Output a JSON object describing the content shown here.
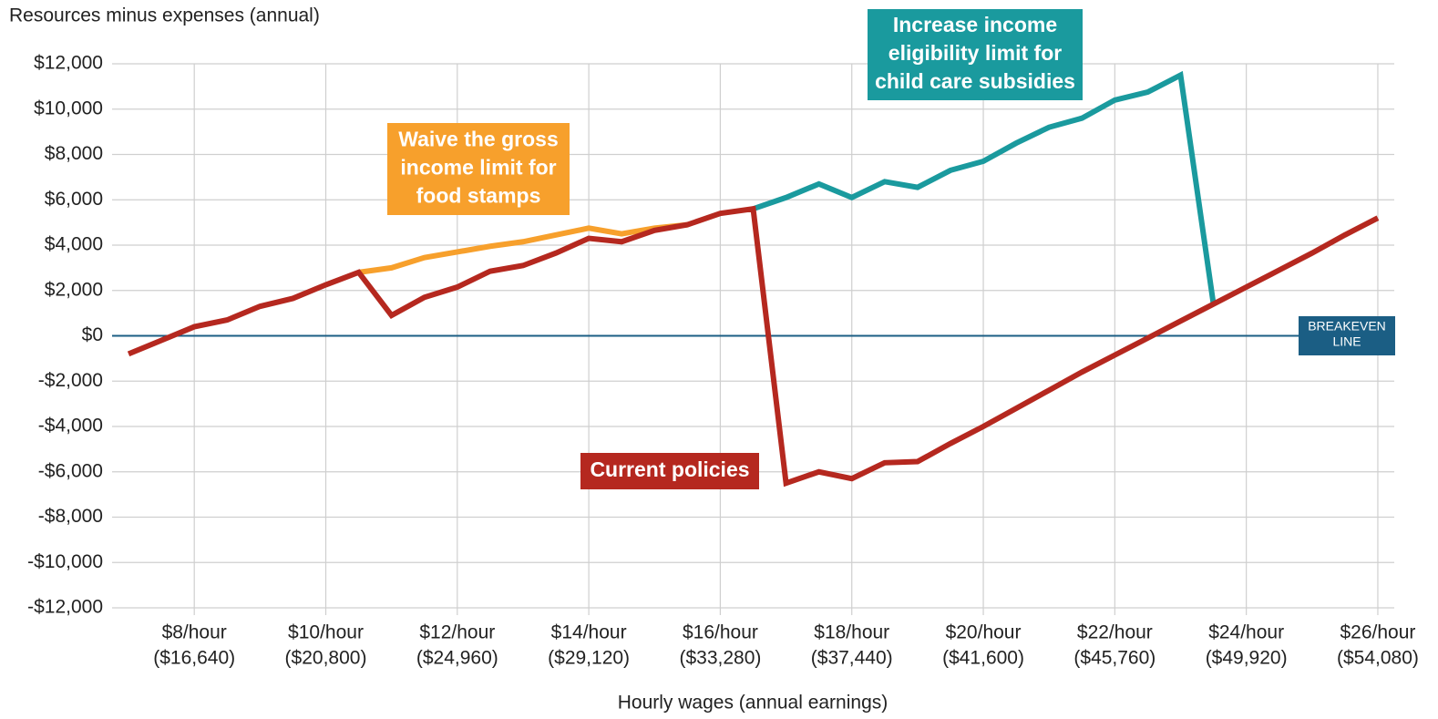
{
  "chart_data": {
    "type": "line",
    "ylabel": "Resources minus expenses (annual)",
    "xlabel": "Hourly wages (annual earnings)",
    "x": [
      7,
      7.5,
      8,
      8.5,
      9,
      9.5,
      10,
      10.5,
      11,
      11.5,
      12,
      12.5,
      13,
      13.5,
      14,
      14.5,
      15,
      15.5,
      16,
      16.5,
      17,
      17.5,
      18,
      18.5,
      19,
      19.5,
      20,
      20.5,
      21,
      21.5,
      22,
      22.5,
      23,
      23.5,
      24,
      24.5,
      25,
      25.5,
      26
    ],
    "series": [
      {
        "label": [
          "Waive the gross",
          "income limit for",
          "food stamps"
        ],
        "color": "#f7a02c",
        "values": [
          null,
          null,
          null,
          null,
          null,
          null,
          null,
          2800,
          3000,
          3450,
          3700,
          3950,
          4150,
          4450,
          4750,
          4500,
          4750,
          4900,
          null,
          null,
          null,
          null,
          null,
          null,
          null,
          null,
          null,
          null,
          null,
          null,
          null,
          null,
          null,
          null,
          null,
          null,
          null,
          null,
          null
        ]
      },
      {
        "label": [
          "Increase  income",
          "eligibility limit for",
          "child care subsidies"
        ],
        "color": "#1a9a9e",
        "values": [
          null,
          null,
          null,
          null,
          null,
          null,
          null,
          null,
          null,
          null,
          null,
          null,
          null,
          null,
          null,
          null,
          null,
          null,
          null,
          5600,
          6100,
          6700,
          6100,
          6800,
          6550,
          7300,
          7700,
          8500,
          9200,
          9600,
          10400,
          10750,
          11500,
          1400,
          null,
          null,
          null,
          null,
          null
        ]
      },
      {
        "label": [
          "Current policies"
        ],
        "color": "#b5281f",
        "values": [
          -800,
          -200,
          400,
          700,
          1300,
          1650,
          2250,
          2800,
          900,
          1700,
          2150,
          2850,
          3100,
          3650,
          4300,
          4150,
          4650,
          4900,
          5400,
          5600,
          -6500,
          -6000,
          -6300,
          -5600,
          -5550,
          -4750,
          -4000,
          -3200,
          -2400,
          -1600,
          -850,
          -100,
          650,
          1400,
          2150,
          2900,
          3650,
          4450,
          5200
        ]
      }
    ],
    "breakeven": {
      "value": 0,
      "label": [
        "BREAKEVEN",
        "LINE"
      ],
      "color": "#1b5e84"
    },
    "xlim": [
      6.75,
      26.25
    ],
    "ylim": [
      -12000,
      12000
    ],
    "xticks": [
      {
        "value": 8,
        "label": [
          "$8/hour",
          "($16,640)"
        ]
      },
      {
        "value": 10,
        "label": [
          "$10/hour",
          "($20,800)"
        ]
      },
      {
        "value": 12,
        "label": [
          "$12/hour",
          "($24,960)"
        ]
      },
      {
        "value": 14,
        "label": [
          "$14/hour",
          "($29,120)"
        ]
      },
      {
        "value": 16,
        "label": [
          "$16/hour",
          "($33,280)"
        ]
      },
      {
        "value": 18,
        "label": [
          "$18/hour",
          "($37,440)"
        ]
      },
      {
        "value": 20,
        "label": [
          "$20/hour",
          "($41,600)"
        ]
      },
      {
        "value": 22,
        "label": [
          "$22/hour",
          "($45,760)"
        ]
      },
      {
        "value": 24,
        "label": [
          "$24/hour",
          "($49,920)"
        ]
      },
      {
        "value": 26,
        "label": [
          "$26/hour",
          "($54,080)"
        ]
      }
    ],
    "yticks": [
      {
        "value": 12000,
        "label": "$12,000"
      },
      {
        "value": 10000,
        "label": "$10,000"
      },
      {
        "value": 8000,
        "label": "$8,000"
      },
      {
        "value": 6000,
        "label": "$6,000"
      },
      {
        "value": 4000,
        "label": "$4,000"
      },
      {
        "value": 2000,
        "label": "$2,000"
      },
      {
        "value": 0,
        "label": "$0"
      },
      {
        "value": -2000,
        "label": "-$2,000"
      },
      {
        "value": -4000,
        "label": "-$4,000"
      },
      {
        "value": -6000,
        "label": "-$6,000"
      },
      {
        "value": -8000,
        "label": "-$8,000"
      },
      {
        "value": -10000,
        "label": "-$10,000"
      },
      {
        "value": -12000,
        "label": "-$12,000"
      }
    ],
    "grid": true
  }
}
